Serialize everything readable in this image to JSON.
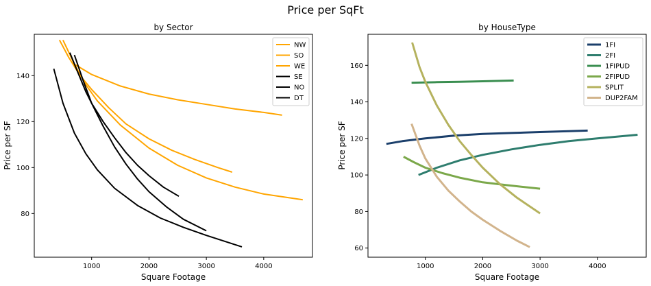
{
  "figure": {
    "title": "Price per SqFt"
  },
  "chart_data": [
    {
      "type": "line",
      "title": "by Sector",
      "xlabel": "Square Footage",
      "ylabel": "Price per SF",
      "xlim": [
        0,
        4850
      ],
      "ylim": [
        61,
        158
      ],
      "xticks": [
        1000,
        2000,
        3000,
        4000
      ],
      "yticks": [
        80,
        100,
        120,
        140
      ],
      "grid": false,
      "legend": "top-right",
      "line_width": 2,
      "series": [
        {
          "name": "NW",
          "color": "#FFA500",
          "x": [
            700,
            1000,
            1500,
            2000,
            2500,
            3000,
            3500,
            4000,
            4320
          ],
          "y": [
            145,
            140.5,
            135.5,
            132,
            129.5,
            127.5,
            125.5,
            124,
            122.8
          ]
        },
        {
          "name": "SO",
          "color": "#FFA500",
          "x": [
            440,
            600,
            800,
            1000,
            1300,
            1600,
            2000,
            2400,
            2800,
            3200,
            3450
          ],
          "y": [
            155.5,
            148,
            140,
            134,
            126,
            119,
            112.5,
            107.5,
            103.5,
            100,
            98
          ]
        },
        {
          "name": "WE",
          "color": "#FFA500",
          "x": [
            500,
            700,
            900,
            1100,
            1500,
            2000,
            2500,
            3000,
            3500,
            4000,
            4680
          ],
          "y": [
            155.5,
            145,
            136,
            129,
            118.5,
            108.5,
            101,
            95.5,
            91.5,
            88.5,
            86
          ]
        },
        {
          "name": "SE",
          "color": "#000000",
          "x": [
            620,
            750,
            900,
            1000,
            1200,
            1400,
            1600,
            1800,
            2000,
            2250,
            2520
          ],
          "y": [
            150,
            142,
            133,
            128,
            120,
            113,
            106.5,
            101,
            96.5,
            91.5,
            87.5
          ]
        },
        {
          "name": "NO",
          "color": "#000000",
          "x": [
            700,
            850,
            1000,
            1200,
            1400,
            1600,
            1800,
            2000,
            2300,
            2600,
            3000
          ],
          "y": [
            149,
            138,
            128,
            118,
            109,
            101.5,
            95,
            89.5,
            83,
            77.5,
            72.5
          ]
        },
        {
          "name": "DT",
          "color": "#000000",
          "x": [
            340,
            500,
            700,
            900,
            1100,
            1400,
            1800,
            2200,
            2600,
            3000,
            3620
          ],
          "y": [
            143,
            128,
            115,
            106,
            99,
            91,
            83.5,
            78,
            74,
            70.5,
            65.5
          ]
        }
      ]
    },
    {
      "type": "line",
      "title": "by HouseType",
      "xlabel": "Square Footage",
      "ylabel": "Price per SF",
      "xlim": [
        0,
        4850
      ],
      "ylim": [
        55,
        177
      ],
      "xticks": [
        1000,
        2000,
        3000,
        4000
      ],
      "yticks": [
        60,
        80,
        100,
        120,
        140,
        160
      ],
      "grid": false,
      "legend": "top-right",
      "line_width": 3,
      "series": [
        {
          "name": "1FI",
          "color": "#1B3F6B",
          "x": [
            320,
            600,
            1000,
            1500,
            2000,
            2500,
            3000,
            3500,
            3830
          ],
          "y": [
            117,
            118.5,
            120,
            121.5,
            122.5,
            123,
            123.5,
            124,
            124.3
          ]
        },
        {
          "name": "2FI",
          "color": "#2E7D6E",
          "x": [
            880,
            1200,
            1600,
            2000,
            2500,
            3000,
            3500,
            4000,
            4700
          ],
          "y": [
            100,
            104,
            108,
            111,
            114,
            116.5,
            118.5,
            120,
            122
          ]
        },
        {
          "name": "1FIPUD",
          "color": "#3A8E50",
          "x": [
            760,
            1200,
            1600,
            2000,
            2540
          ],
          "y": [
            150.5,
            150.8,
            151,
            151.3,
            151.7
          ]
        },
        {
          "name": "2FIPUD",
          "color": "#7BA84A",
          "x": [
            620,
            800,
            1000,
            1300,
            1600,
            2000,
            2400,
            3000
          ],
          "y": [
            110,
            107,
            104,
            101,
            98.5,
            96,
            94.5,
            92.5
          ]
        },
        {
          "name": "SPLIT",
          "color": "#B5B25E",
          "x": [
            770,
            900,
            1000,
            1200,
            1400,
            1600,
            1800,
            2000,
            2300,
            2600,
            3000
          ],
          "y": [
            172.5,
            159,
            151,
            138,
            127.5,
            118.5,
            111,
            104,
            95,
            87.5,
            79
          ]
        },
        {
          "name": "DUP2FAM",
          "color": "#D2B48C",
          "x": [
            760,
            900,
            1000,
            1200,
            1400,
            1600,
            1800,
            2000,
            2300,
            2600,
            2820
          ],
          "y": [
            128,
            116,
            109,
            99,
            91.5,
            85.5,
            80,
            75.5,
            69.5,
            64,
            60.5
          ]
        }
      ]
    }
  ]
}
